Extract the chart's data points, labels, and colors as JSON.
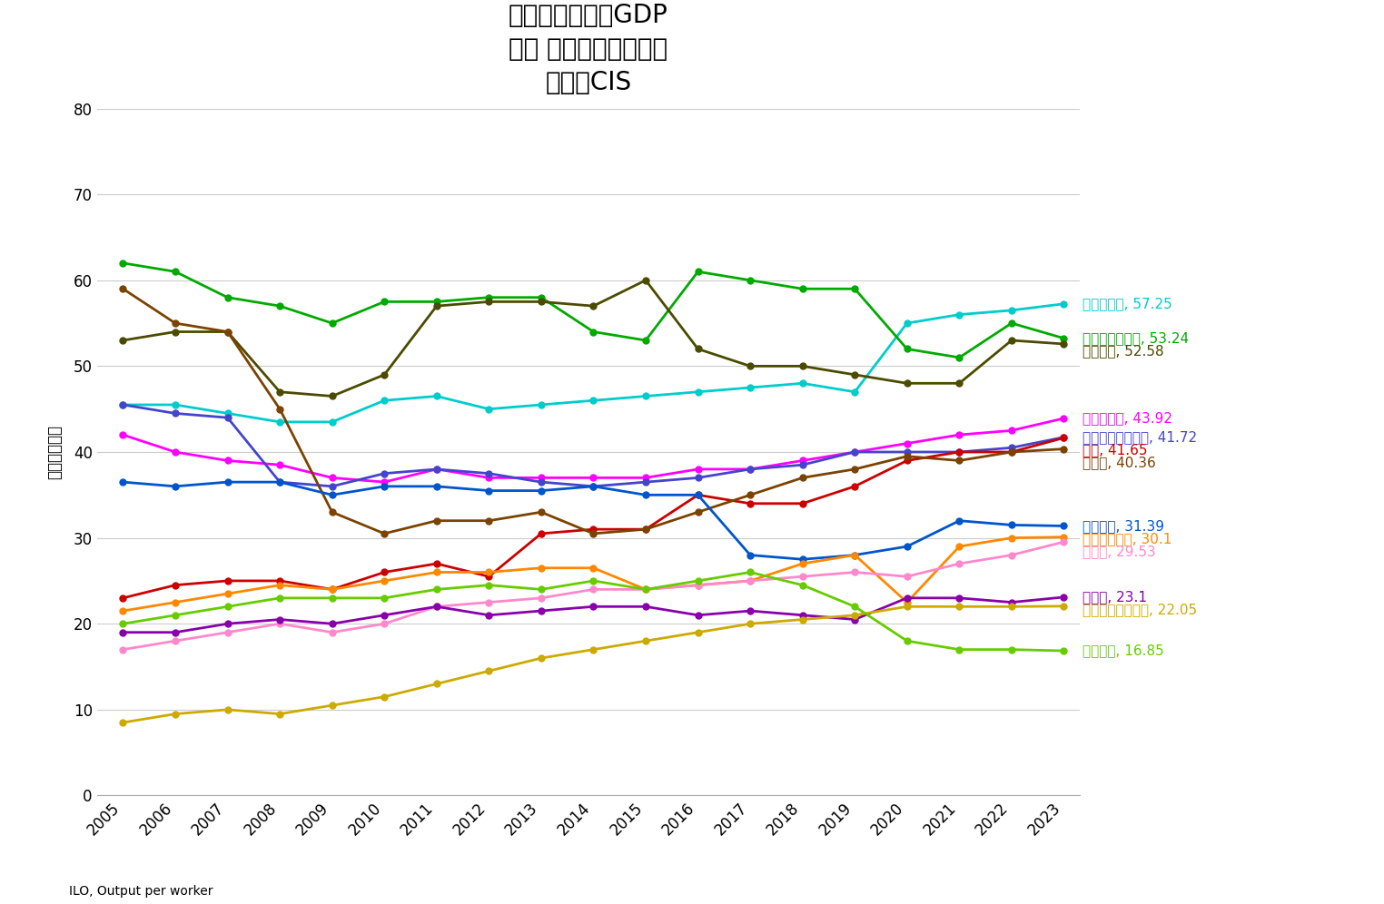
{
  "title_line1": "労働時間あたりGDP",
  "title_line2": "実質 購買力平価換算値",
  "title_line3": "中東・CIS",
  "ylabel": "金額［ドル］",
  "xlabel_source": "ILO, Output per worker",
  "years": [
    2005,
    2006,
    2007,
    2008,
    2009,
    2010,
    2011,
    2012,
    2013,
    2014,
    2015,
    2016,
    2017,
    2018,
    2019,
    2020,
    2021,
    2022,
    2023
  ],
  "series": [
    {
      "name": "イスラエル, 57.25",
      "last_value": 57.25,
      "color": "#00CCCC",
      "values": [
        45.5,
        45.5,
        44.5,
        43.5,
        43.5,
        46,
        46.5,
        45,
        45.5,
        46,
        46.5,
        47,
        47.5,
        48,
        47,
        55,
        56,
        56.5,
        57.25
      ]
    },
    {
      "name": "サウジアラビア, 53.24",
      "last_value": 53.24,
      "color": "#00AA00",
      "values": [
        62,
        61,
        58,
        57,
        55,
        57.5,
        57.5,
        58,
        58,
        54,
        53,
        61,
        60,
        59,
        59,
        52,
        51,
        55,
        53.24
      ]
    },
    {
      "name": "カタール, 52.58",
      "last_value": 52.58,
      "color": "#4B4B00",
      "values": [
        53,
        54,
        54,
        47,
        46.5,
        49,
        57,
        57.5,
        57.5,
        57,
        60,
        52,
        50,
        50,
        49,
        48,
        48,
        53,
        52.58
      ]
    },
    {
      "name": "バーレーン, 43.92",
      "last_value": 43.92,
      "color": "#FF00FF",
      "values": [
        42,
        40,
        39,
        38.5,
        37,
        36.5,
        38,
        37,
        37,
        37,
        37,
        38,
        38,
        39,
        40,
        41,
        42,
        42.5,
        43.92
      ]
    },
    {
      "name": "アラブ首長国連邦, 41.72",
      "last_value": 41.72,
      "color": "#4444CC",
      "values": [
        45.5,
        44.5,
        44,
        36.5,
        36,
        37.5,
        38,
        37.5,
        36.5,
        36,
        36.5,
        37,
        38,
        38.5,
        40,
        40,
        40,
        40.5,
        41.72
      ]
    },
    {
      "name": "日本, 41.65",
      "last_value": 41.65,
      "color": "#CC0000",
      "values": [
        23,
        24.5,
        25,
        25,
        24,
        26,
        27,
        25.5,
        30.5,
        31,
        31,
        35,
        34,
        34,
        36,
        39,
        40,
        40,
        41.65
      ]
    },
    {
      "name": "トルコ, 40.36",
      "last_value": 40.36,
      "color": "#7B4200",
      "values": [
        59,
        55,
        54,
        45,
        33,
        30.5,
        32,
        32,
        33,
        30.5,
        31,
        33,
        35,
        37,
        38,
        39.5,
        39,
        40,
        40.36
      ]
    },
    {
      "name": "オマーン, 31.39",
      "last_value": 31.39,
      "color": "#0055CC",
      "values": [
        36.5,
        36,
        36.5,
        36.5,
        35,
        36,
        36,
        35.5,
        35.5,
        36,
        35,
        35,
        28,
        27.5,
        28,
        29,
        32,
        31.5,
        31.39
      ]
    },
    {
      "name": "カザフスタン, 30.1",
      "last_value": 30.1,
      "color": "#FF8800",
      "values": [
        21.5,
        22.5,
        23.5,
        24.5,
        24,
        25,
        26,
        26,
        26.5,
        26.5,
        24,
        24.5,
        25,
        27,
        28,
        22.5,
        29,
        30,
        30.1
      ]
    },
    {
      "name": "ロシア, 29.53",
      "last_value": 29.53,
      "color": "#FF88CC",
      "values": [
        17,
        18,
        19,
        20,
        19,
        20,
        22,
        22.5,
        23,
        24,
        24,
        24.5,
        25,
        25.5,
        26,
        25.5,
        27,
        28,
        29.53
      ]
    },
    {
      "name": "イラン, 23.1",
      "last_value": 23.1,
      "color": "#8800AA",
      "values": [
        19,
        19,
        20,
        20.5,
        20,
        21,
        22,
        21,
        21.5,
        22,
        22,
        21,
        21.5,
        21,
        20.5,
        23,
        23,
        22.5,
        23.1
      ]
    },
    {
      "name": "トルクメニスタン, 22.05",
      "last_value": 22.05,
      "color": "#CCAA00",
      "values": [
        8.5,
        9.5,
        10,
        9.5,
        10.5,
        11.5,
        13,
        14.5,
        16,
        17,
        18,
        19,
        20,
        20.5,
        21,
        22,
        22,
        22,
        22.05
      ]
    },
    {
      "name": "レバノン, 16.85",
      "last_value": 16.85,
      "color": "#66CC00",
      "values": [
        20,
        21,
        22,
        23,
        23,
        23,
        24,
        24.5,
        24,
        25,
        24,
        25,
        26,
        24.5,
        22,
        18,
        17,
        17,
        16.85
      ]
    }
  ],
  "ylim": [
    0,
    80
  ],
  "yticks": [
    0,
    10,
    20,
    30,
    40,
    50,
    60,
    70,
    80
  ],
  "background_color": "#FFFFFF",
  "grid_color": "#CCCCCC",
  "title_fontsize": 20,
  "label_fontsize": 12,
  "tick_fontsize": 12,
  "annotation_fontsize": 11
}
